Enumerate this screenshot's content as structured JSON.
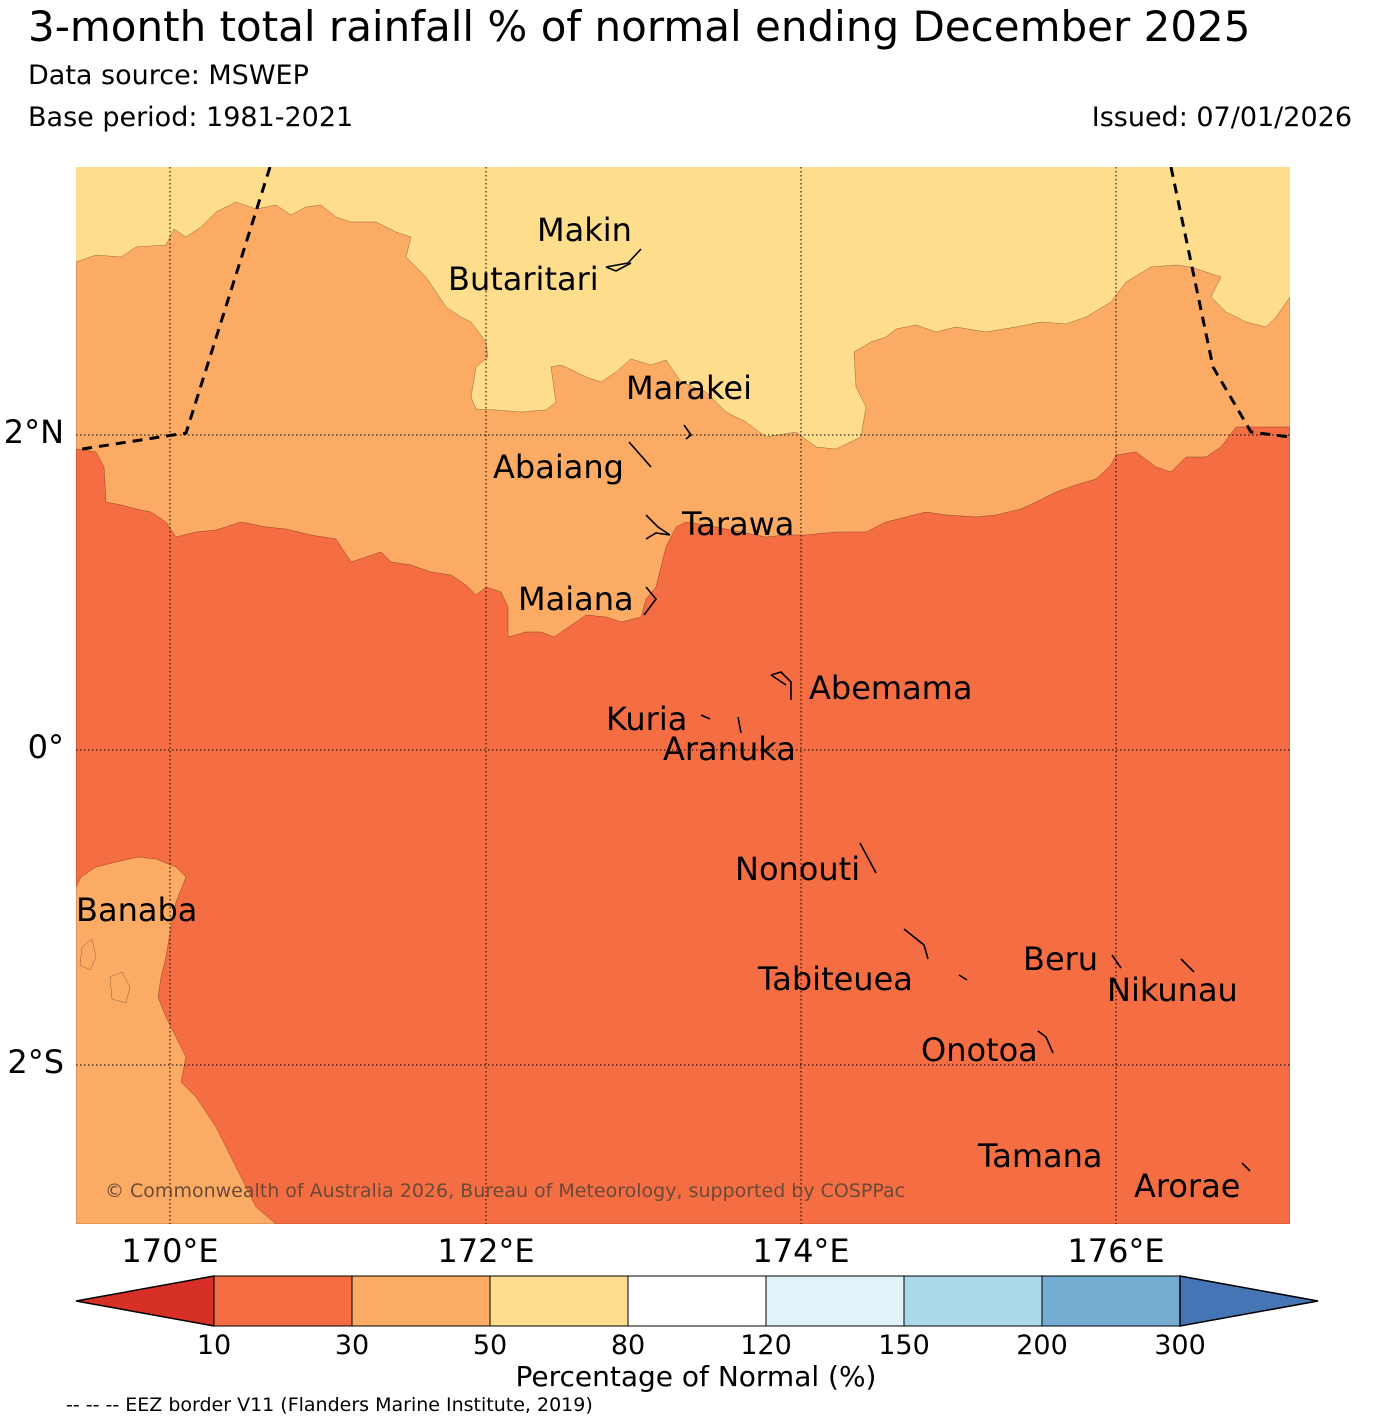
{
  "header": {
    "title": "3-month total rainfall % of normal ending December 2025",
    "data_source": "Data source: MSWEP",
    "base_period": "Base period: 1981-2021",
    "issued": "Issued: 07/01/2026"
  },
  "map": {
    "lat_labels": [
      "2°N",
      "0°",
      "2°S"
    ],
    "lon_labels": [
      "170°E",
      "172°E",
      "174°E",
      "176°E"
    ],
    "islands": [
      "Makin",
      "Butaritari",
      "Marakei",
      "Abaiang",
      "Tarawa",
      "Maiana",
      "Abemama",
      "Kuria",
      "Aranuka",
      "Nonouti",
      "Banaba",
      "Tabiteuea",
      "Beru",
      "Nikunau",
      "Onotoa",
      "Tamana",
      "Arorae"
    ],
    "copyright": "© Commonwealth of Australia 2026, Bureau of Meteorology, supported by COSPPac",
    "region_colors": {
      "30_50": "#fbab64",
      "10_30": "#f46d43",
      "50_80": "#fedd8d"
    }
  },
  "colorbar": {
    "ticks": [
      "10",
      "30",
      "50",
      "80",
      "120",
      "150",
      "200",
      "300"
    ],
    "colors": [
      "#d73027",
      "#f46d43",
      "#fbab64",
      "#fedd8d",
      "#ffffff",
      "#e0f3f8",
      "#abd9e9",
      "#74add1",
      "#4575b4"
    ],
    "label": "Percentage of Normal (%)"
  },
  "footer": {
    "eez_note": "-- -- -- EEZ border V11 (Flanders Marine Institute, 2019)"
  }
}
